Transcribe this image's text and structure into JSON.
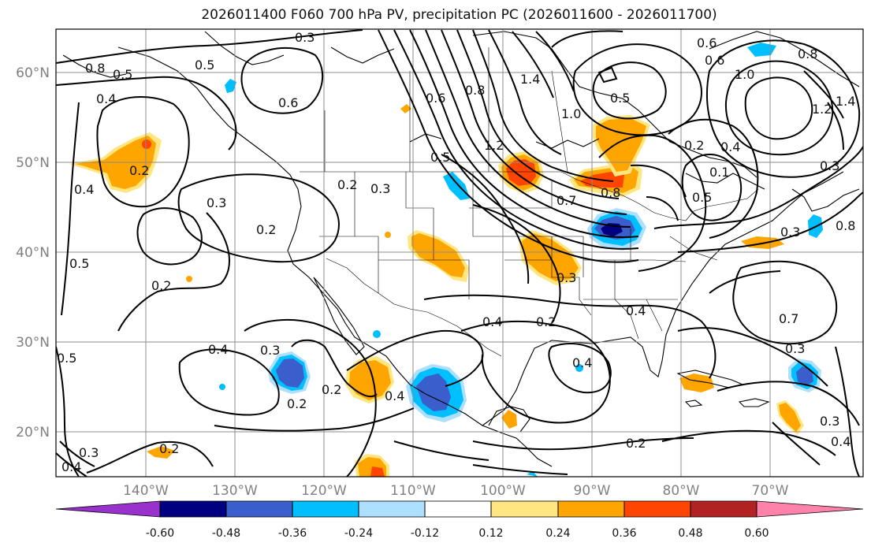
{
  "title": "2026011400 F060 700 hPa PV, precipitation PC (2026011600 - 2026011700)",
  "axes": {
    "lat_labels": [
      "60°N",
      "50°N",
      "40°N",
      "30°N",
      "20°N"
    ],
    "lon_labels": [
      "140°W",
      "130°W",
      "120°W",
      "110°W",
      "100°W",
      "90°W",
      "80°W",
      "70°W"
    ]
  },
  "contour_labels": [
    "0.3",
    "0.5",
    "0.8",
    "0.6",
    "0.4",
    "1.0",
    "1.2",
    "1.4",
    "0.2",
    "0.7",
    "0.1"
  ],
  "shading": {
    "levels": [
      "-0.60",
      "-0.48",
      "-0.36",
      "-0.24",
      "-0.12",
      "0.12",
      "0.24",
      "0.36",
      "0.48",
      "0.60"
    ],
    "colors": [
      "#9932CC",
      "#000080",
      "#3A5FCD",
      "#00BFFF",
      "#ADDFFF",
      "#FFFFFF",
      "#FFE680",
      "#FFA500",
      "#FF4500",
      "#B22222",
      "#FF82AB"
    ]
  }
}
